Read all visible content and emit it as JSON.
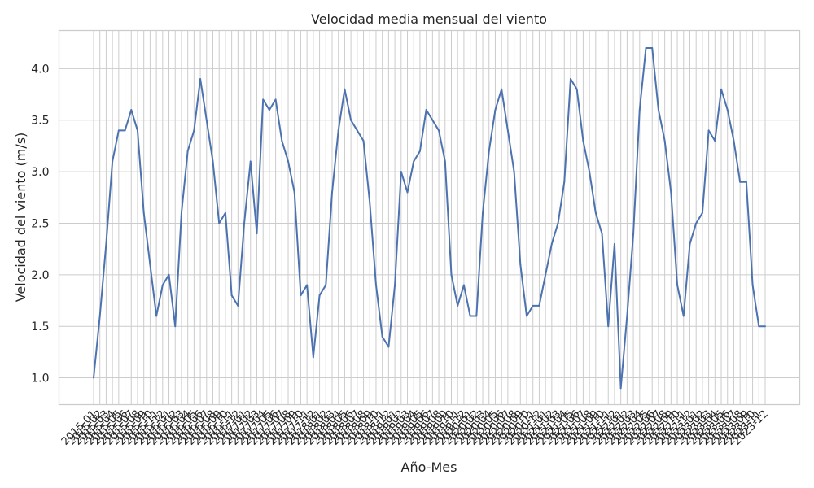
{
  "chart_data": {
    "type": "line",
    "title": "Velocidad media mensual del viento",
    "xlabel": "Año-Mes",
    "ylabel": "Velocidad del viento (m/s)",
    "ylim": [
      0.74,
      4.37
    ],
    "yticks": [
      1.0,
      1.5,
      2.0,
      2.5,
      3.0,
      3.5,
      4.0
    ],
    "ytick_labels": [
      "1.0",
      "1.5",
      "2.0",
      "2.5",
      "3.0",
      "3.5",
      "4.0"
    ],
    "grid": true,
    "x_start": "2015-01",
    "x_end": "2023-12",
    "categories": [
      "2015-01",
      "2015-02",
      "2015-03",
      "2015-04",
      "2015-05",
      "2015-06",
      "2015-07",
      "2015-08",
      "2015-09",
      "2015-10",
      "2015-11",
      "2015-12",
      "2016-01",
      "2016-02",
      "2016-03",
      "2016-04",
      "2016-05",
      "2016-06",
      "2016-07",
      "2016-08",
      "2016-09",
      "2016-10",
      "2016-11",
      "2016-12",
      "2017-01",
      "2017-02",
      "2017-03",
      "2017-04",
      "2017-05",
      "2017-06",
      "2017-07",
      "2017-08",
      "2017-09",
      "2017-10",
      "2017-11",
      "2017-12",
      "2018-01",
      "2018-02",
      "2018-03",
      "2018-04",
      "2018-05",
      "2018-06",
      "2018-07",
      "2018-08",
      "2018-09",
      "2018-10",
      "2018-11",
      "2018-12",
      "2019-01",
      "2019-02",
      "2019-03",
      "2019-04",
      "2019-05",
      "2019-06",
      "2019-07",
      "2019-08",
      "2019-09",
      "2019-10",
      "2019-11",
      "2019-12",
      "2020-01",
      "2020-02",
      "2020-03",
      "2020-04",
      "2020-05",
      "2020-06",
      "2020-07",
      "2020-08",
      "2020-09",
      "2020-10",
      "2020-11",
      "2020-12",
      "2021-01",
      "2021-02",
      "2021-03",
      "2021-04",
      "2021-05",
      "2021-06",
      "2021-07",
      "2021-08",
      "2021-09",
      "2021-10",
      "2021-11",
      "2021-12",
      "2022-01",
      "2022-02",
      "2022-03",
      "2022-04",
      "2022-05",
      "2022-06",
      "2022-07",
      "2022-08",
      "2022-09",
      "2022-10",
      "2022-11",
      "2022-12",
      "2023-01",
      "2023-02",
      "2023-03",
      "2023-04",
      "2023-05",
      "2023-06",
      "2023-07",
      "2023-08",
      "2023-09",
      "2023-10",
      "2023-11",
      "2023-12"
    ],
    "series": [
      {
        "color": "#4c72b0",
        "values": [
          1.0,
          1.6,
          2.3,
          3.1,
          3.4,
          3.4,
          3.6,
          3.4,
          2.6,
          2.1,
          1.6,
          1.9,
          2.0,
          1.5,
          2.6,
          3.2,
          3.4,
          3.9,
          3.5,
          3.1,
          2.5,
          2.6,
          1.8,
          1.7,
          2.5,
          3.1,
          2.4,
          3.7,
          3.6,
          3.7,
          3.3,
          3.1,
          2.8,
          1.8,
          1.9,
          1.2,
          1.8,
          1.9,
          2.8,
          3.4,
          3.8,
          3.5,
          3.4,
          3.3,
          2.7,
          1.9,
          1.4,
          1.3,
          1.9,
          3.0,
          2.8,
          3.1,
          3.2,
          3.6,
          3.5,
          3.4,
          3.1,
          2.0,
          1.7,
          1.9,
          1.6,
          1.6,
          2.6,
          3.2,
          3.6,
          3.8,
          3.4,
          3.0,
          2.1,
          1.6,
          1.7,
          1.7,
          2.0,
          2.3,
          2.5,
          2.9,
          3.9,
          3.8,
          3.3,
          3.0,
          2.6,
          2.4,
          1.5,
          2.3,
          0.9,
          1.6,
          2.4,
          3.6,
          4.2,
          4.2,
          3.6,
          3.3,
          2.8,
          1.9,
          1.6,
          2.3,
          2.5,
          2.6,
          3.4,
          3.3,
          3.8,
          3.6,
          3.3,
          2.9,
          2.9,
          1.9,
          1.5,
          1.5
        ]
      }
    ]
  }
}
